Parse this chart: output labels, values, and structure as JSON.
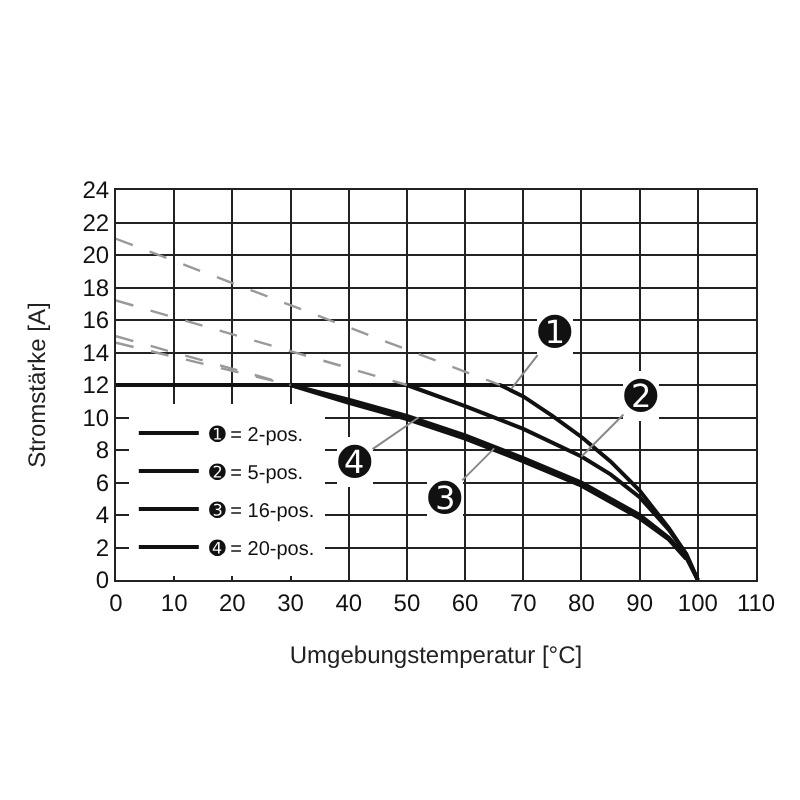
{
  "chart_data": {
    "type": "line",
    "xlabel": "Umgebungstemperatur [°C]",
    "ylabel": "Stromstärke [A]",
    "xlim": [
      0,
      110
    ],
    "xticks": [
      0,
      10,
      20,
      30,
      40,
      50,
      60,
      70,
      80,
      90,
      100,
      110
    ],
    "ylim": [
      0,
      24
    ],
    "yticks": [
      0,
      2,
      4,
      6,
      8,
      10,
      12,
      14,
      16,
      18,
      20,
      22,
      24
    ],
    "grid": true,
    "legend": "bottom left",
    "marker": "none",
    "series": [
      {
        "name": "➊ = 2-pos.",
        "color": "#111111",
        "line_style": "solid",
        "x": [
          0,
          66,
          70,
          75,
          80,
          85,
          90,
          95,
          98,
          100
        ],
        "values": [
          12,
          12,
          11.3,
          10.1,
          8.8,
          7.3,
          5.5,
          3.2,
          1.6,
          0
        ]
      },
      {
        "name": "➋ = 5-pos.",
        "color": "#111111",
        "line_style": "solid",
        "x": [
          50,
          60,
          70,
          80,
          85,
          90,
          95,
          98,
          100
        ],
        "values": [
          12,
          10.7,
          9.3,
          7.6,
          6.5,
          5.1,
          3.1,
          1.6,
          0
        ]
      },
      {
        "name": "➌ = 16-pos.",
        "color": "#111111",
        "line_style": "solid",
        "x": [
          30,
          40,
          50,
          60,
          70,
          80,
          90,
          95,
          98,
          100
        ],
        "values": [
          12,
          11.1,
          10.1,
          8.9,
          7.5,
          6,
          4,
          2.6,
          1.4,
          0
        ]
      },
      {
        "name": "➍ = 20-pos.",
        "color": "#111111",
        "line_style": "solid",
        "x": [
          30,
          40,
          50,
          60,
          70,
          80,
          90,
          95,
          98
        ],
        "values": [
          12,
          10.9,
          9.9,
          8.7,
          7.3,
          5.8,
          3.8,
          2.5,
          1.3
        ]
      },
      {
        "color": "#999999",
        "line_style": "dashed",
        "x": [
          0,
          66
        ],
        "values": [
          21,
          12
        ]
      },
      {
        "color": "#999999",
        "line_style": "dashed",
        "x": [
          0,
          50
        ],
        "values": [
          17.2,
          12
        ]
      },
      {
        "color": "#999999",
        "line_style": "dashed",
        "x": [
          0,
          30
        ],
        "values": [
          15,
          12
        ]
      },
      {
        "color": "#999999",
        "line_style": "dashed",
        "x": [
          0,
          30
        ],
        "values": [
          14.6,
          12
        ]
      }
    ],
    "annotations": [
      {
        "text": "➊",
        "x": 68,
        "y": 11.8
      },
      {
        "text": "➋",
        "x": 80,
        "y": 7.6
      },
      {
        "text": "➌",
        "x": 65,
        "y": 8.1
      },
      {
        "text": "➍",
        "x": 52,
        "y": 10
      }
    ]
  }
}
